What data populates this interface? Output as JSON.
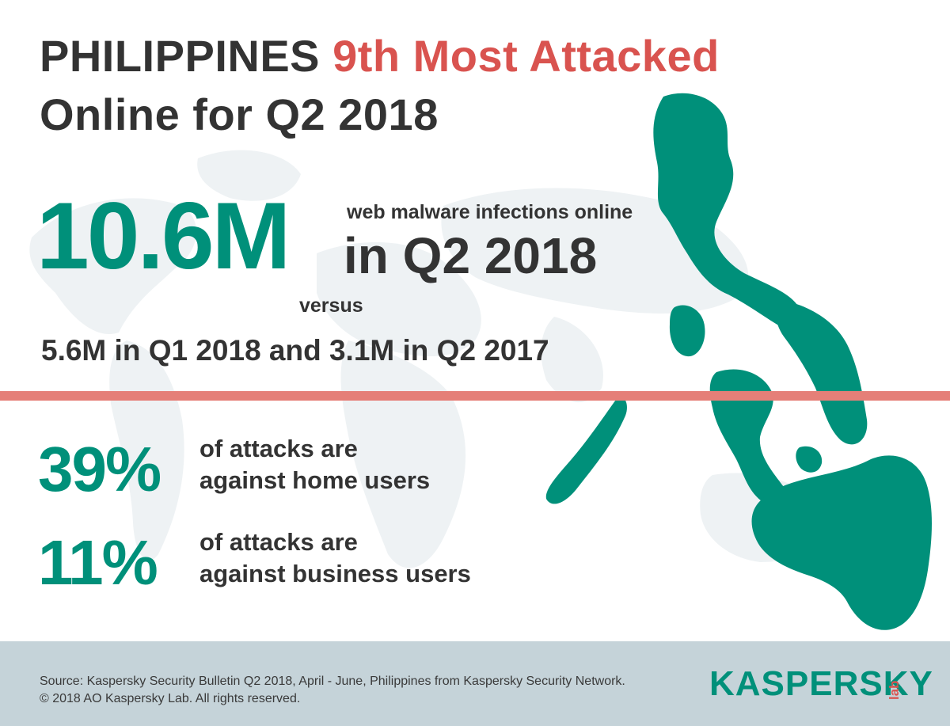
{
  "title": {
    "line1_prefix": "PHILIPPINES",
    "line1_accent": "9th Most Attacked",
    "line2": "Online for Q2 2018"
  },
  "headline_stat": {
    "value": "10.6M",
    "caption_small": "web malware infections online",
    "caption_large": "in Q2 2018",
    "versus": "versus",
    "comparison": "5.6M in Q1 2018 and 3.1M in Q2 2017"
  },
  "breakdown": [
    {
      "value": "39%",
      "line1": "of attacks are",
      "line2": "against home users"
    },
    {
      "value": "11%",
      "line1": "of attacks are",
      "line2": "against business users"
    }
  ],
  "footer": {
    "source_line1": "Source: Kaspersky Security Bulletin Q2 2018, April - June, Philippines from Kaspersky Security Network.",
    "source_line2": "© 2018 AO Kaspersky Lab. All rights reserved.",
    "logo_text": "KASPERSKY",
    "logo_sub": "lab"
  },
  "colors": {
    "accent_red": "#d9534f",
    "brand_green": "#00907a",
    "text_dark": "#333333",
    "divider": "#e57f78",
    "footer_bg": "#c5d3d9",
    "map_faint": "#eef2f4"
  },
  "icons": {
    "background": "world-map-illustration",
    "map": "philippines-map-illustration",
    "logo": "kaspersky-lab-logo"
  }
}
